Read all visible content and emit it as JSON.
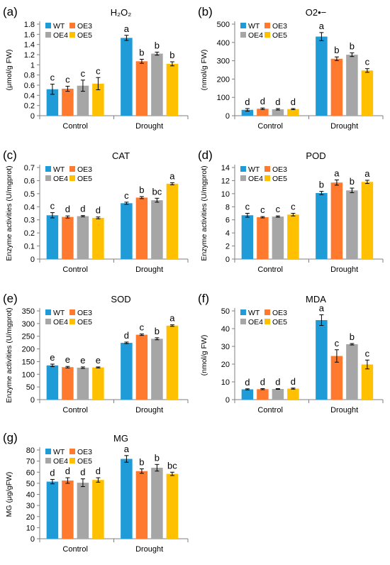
{
  "series_colors": {
    "WT": "#1F9BD7",
    "OE3": "#FF7A2E",
    "OE4": "#A6A6A6",
    "OE5": "#FFC000"
  },
  "chart_data": [
    {
      "id": "a",
      "panel_label": "(a)",
      "type": "bar",
      "title": "H₂O₂",
      "ylabel": "(μmol/g FW)",
      "ylim": [
        0,
        1.8
      ],
      "yticks": [
        0,
        0.2,
        0.4,
        0.6,
        0.8,
        1,
        1.2,
        1.4,
        1.6,
        1.8
      ],
      "ytick_labels": [
        "0",
        "0.2",
        "0.4",
        "0.6",
        "0.8",
        "1",
        "1.2",
        "1.4",
        "1.6",
        "1.8"
      ],
      "categories": [
        "Control",
        "Drought"
      ],
      "legend": [
        "WT",
        "OE3",
        "OE4",
        "OE5"
      ],
      "series": [
        {
          "name": "WT",
          "values": [
            0.52,
            1.53
          ],
          "errors": [
            0.1,
            0.05
          ],
          "letters": [
            "c",
            "a"
          ]
        },
        {
          "name": "OE3",
          "values": [
            0.53,
            1.07
          ],
          "errors": [
            0.05,
            0.04
          ],
          "letters": [
            "c",
            "b"
          ]
        },
        {
          "name": "OE4",
          "values": [
            0.59,
            1.22
          ],
          "errors": [
            0.11,
            0.03
          ],
          "letters": [
            "c",
            "b"
          ]
        },
        {
          "name": "OE5",
          "values": [
            0.63,
            1.02
          ],
          "errors": [
            0.12,
            0.04
          ],
          "letters": [
            "c",
            "b"
          ]
        }
      ]
    },
    {
      "id": "b",
      "panel_label": "(b)",
      "type": "bar",
      "title": "O2•−",
      "ylabel": "(nmol/g FW)",
      "ylim": [
        0,
        500
      ],
      "yticks": [
        0,
        100,
        200,
        300,
        400,
        500
      ],
      "ytick_labels": [
        "0",
        "100",
        "200",
        "300",
        "400",
        "500"
      ],
      "categories": [
        "Control",
        "Drought"
      ],
      "legend": [
        "WT",
        "OE3",
        "OE4",
        "OE5"
      ],
      "series": [
        {
          "name": "WT",
          "values": [
            32,
            432
          ],
          "errors": [
            7,
            22
          ],
          "letters": [
            "d",
            "a"
          ]
        },
        {
          "name": "OE3",
          "values": [
            38,
            311
          ],
          "errors": [
            4,
            10
          ],
          "letters": [
            "d",
            "b"
          ]
        },
        {
          "name": "OE4",
          "values": [
            35,
            333
          ],
          "errors": [
            4,
            10
          ],
          "letters": [
            "d",
            "b"
          ]
        },
        {
          "name": "OE5",
          "values": [
            36,
            247
          ],
          "errors": [
            3,
            10
          ],
          "letters": [
            "d",
            "c"
          ]
        }
      ]
    },
    {
      "id": "c",
      "panel_label": "(c)",
      "type": "bar",
      "title": "CAT",
      "ylabel": "Enzyme activities (U/mgprot)",
      "ylim": [
        0,
        0.7
      ],
      "yticks": [
        0,
        0.1,
        0.2,
        0.3,
        0.4,
        0.5,
        0.6,
        0.7
      ],
      "ytick_labels": [
        "0",
        "0.1",
        "0.2",
        "0.3",
        "0.4",
        "0.5",
        "0.6",
        "0.7"
      ],
      "categories": [
        "Control",
        "Drought"
      ],
      "legend": [
        "WT",
        "OE3",
        "OE4",
        "OE5"
      ],
      "series": [
        {
          "name": "WT",
          "values": [
            0.335,
            0.427
          ],
          "errors": [
            0.02,
            0.008
          ],
          "letters": [
            "c",
            "c"
          ]
        },
        {
          "name": "OE3",
          "values": [
            0.322,
            0.47
          ],
          "errors": [
            0.008,
            0.008
          ],
          "letters": [
            "d",
            "b"
          ]
        },
        {
          "name": "OE4",
          "values": [
            0.328,
            0.45
          ],
          "errors": [
            0.005,
            0.015
          ],
          "letters": [
            "d",
            "bc"
          ]
        },
        {
          "name": "OE5",
          "values": [
            0.315,
            0.576
          ],
          "errors": [
            0.007,
            0.008
          ],
          "letters": [
            "d",
            "a"
          ]
        }
      ]
    },
    {
      "id": "d",
      "panel_label": "(d)",
      "type": "bar",
      "title": "POD",
      "ylabel": "Enzyme activities (U/mgprot)",
      "ylim": [
        0,
        14
      ],
      "yticks": [
        0,
        2,
        4,
        6,
        8,
        10,
        12,
        14
      ],
      "ytick_labels": [
        "0",
        "2",
        "4",
        "6",
        "8",
        "10",
        "12",
        "14"
      ],
      "categories": [
        "Control",
        "Drought"
      ],
      "legend": [
        "WT",
        "OE3",
        "OE4",
        "OE5"
      ],
      "series": [
        {
          "name": "WT",
          "values": [
            6.7,
            10.1
          ],
          "errors": [
            0.3,
            0.25
          ],
          "letters": [
            "c",
            "b"
          ]
        },
        {
          "name": "OE3",
          "values": [
            6.4,
            11.7
          ],
          "errors": [
            0.1,
            0.4
          ],
          "letters": [
            "c",
            "a"
          ]
        },
        {
          "name": "OE4",
          "values": [
            6.5,
            10.5
          ],
          "errors": [
            0.1,
            0.35
          ],
          "letters": [
            "c",
            "b"
          ]
        },
        {
          "name": "OE5",
          "values": [
            6.8,
            11.8
          ],
          "errors": [
            0.2,
            0.25
          ],
          "letters": [
            "c",
            "a"
          ]
        }
      ]
    },
    {
      "id": "e",
      "panel_label": "(e)",
      "type": "bar",
      "title": "SOD",
      "ylabel": "Enzyme activities (U/mgprot)",
      "ylim": [
        0,
        350
      ],
      "yticks": [
        0,
        50,
        100,
        150,
        200,
        250,
        300,
        350
      ],
      "ytick_labels": [
        "0",
        "50",
        "100",
        "150",
        "200",
        "250",
        "300",
        "350"
      ],
      "categories": [
        "Control",
        "Drought"
      ],
      "legend": [
        "WT",
        "OE3",
        "OE4",
        "OE5"
      ],
      "series": [
        {
          "name": "WT",
          "values": [
            135,
            224
          ],
          "errors": [
            5,
            3
          ],
          "letters": [
            "e",
            "d"
          ]
        },
        {
          "name": "OE3",
          "values": [
            128,
            256
          ],
          "errors": [
            3,
            3
          ],
          "letters": [
            "e",
            "c"
          ]
        },
        {
          "name": "OE4",
          "values": [
            126,
            240
          ],
          "errors": [
            3,
            4
          ],
          "letters": [
            "e",
            "b"
          ]
        },
        {
          "name": "OE5",
          "values": [
            127,
            292
          ],
          "errors": [
            2,
            3
          ],
          "letters": [
            "e",
            "a"
          ]
        }
      ]
    },
    {
      "id": "f",
      "panel_label": "(f)",
      "type": "bar",
      "title": "MDA",
      "ylabel": "(nmol/g FW)",
      "ylim": [
        0,
        50
      ],
      "yticks": [
        0,
        10,
        20,
        30,
        40,
        50
      ],
      "ytick_labels": [
        "0",
        "10",
        "20",
        "30",
        "40",
        "50"
      ],
      "categories": [
        "Control",
        "Drought"
      ],
      "legend": [
        "WT",
        "OE3",
        "OE4",
        "OE5"
      ],
      "series": [
        {
          "name": "WT",
          "values": [
            5.8,
            44.8
          ],
          "errors": [
            0.3,
            3
          ],
          "letters": [
            "d",
            "a"
          ]
        },
        {
          "name": "OE3",
          "values": [
            5.9,
            24.6
          ],
          "errors": [
            0.3,
            3.5
          ],
          "letters": [
            "d",
            "c"
          ]
        },
        {
          "name": "OE4",
          "values": [
            6.0,
            31.2
          ],
          "errors": [
            0.2,
            0.4
          ],
          "letters": [
            "d",
            "b"
          ]
        },
        {
          "name": "OE5",
          "values": [
            6.2,
            19.8
          ],
          "errors": [
            0.3,
            2.5
          ],
          "letters": [
            "d",
            "c"
          ]
        }
      ]
    },
    {
      "id": "g",
      "panel_label": "(g)",
      "type": "bar",
      "title": "MG",
      "ylabel": "MG (μg/gFW)",
      "ylim": [
        0,
        80
      ],
      "yticks": [
        0,
        10,
        20,
        30,
        40,
        50,
        60,
        70,
        80
      ],
      "ytick_labels": [
        "0",
        "10",
        "20",
        "30",
        "40",
        "50",
        "60",
        "70",
        "80"
      ],
      "categories": [
        "Control",
        "Drought"
      ],
      "legend": [
        "WT",
        "OE3",
        "OE4",
        "OE5"
      ],
      "series": [
        {
          "name": "WT",
          "values": [
            51.5,
            72.0
          ],
          "errors": [
            2,
            3
          ],
          "letters": [
            "d",
            "a"
          ]
        },
        {
          "name": "OE3",
          "values": [
            52.5,
            61.0
          ],
          "errors": [
            2.5,
            2
          ],
          "letters": [
            "d",
            "b"
          ]
        },
        {
          "name": "OE4",
          "values": [
            50.5,
            64.0
          ],
          "errors": [
            3.5,
            3
          ],
          "letters": [
            "d",
            "b"
          ]
        },
        {
          "name": "OE5",
          "values": [
            53.0,
            58.5
          ],
          "errors": [
            2,
            1.5
          ],
          "letters": [
            "d",
            "bc"
          ]
        }
      ]
    }
  ]
}
